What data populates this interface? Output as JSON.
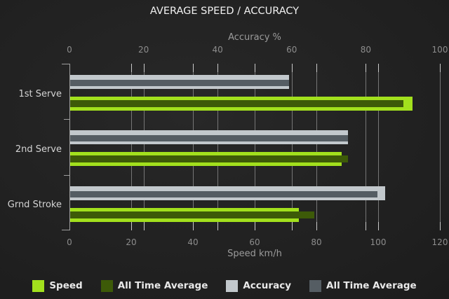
{
  "chart_data": {
    "type": "bar",
    "orientation": "horizontal",
    "title": "AVERAGE SPEED / ACCURACY",
    "grid": true,
    "legend_position": "bottom",
    "categories": [
      "1st Serve",
      "2nd Serve",
      "Grnd Stroke"
    ],
    "series": [
      {
        "key": "speed",
        "name": "Speed",
        "axis": "bottom",
        "color": "#a2e01d",
        "values": [
          111,
          88,
          74
        ]
      },
      {
        "key": "speed-ata",
        "name": "All Time Average",
        "axis": "bottom",
        "color": "#3d5a08",
        "values": [
          108,
          90,
          79
        ]
      },
      {
        "key": "accuracy",
        "name": "Accuracy",
        "axis": "top",
        "color": "#c2c8cc",
        "values": [
          59,
          75,
          85
        ]
      },
      {
        "key": "accuracy-ata",
        "name": "All Time Average",
        "axis": "top",
        "color": "#555d63",
        "values": [
          59,
          75,
          83
        ]
      }
    ],
    "axes": {
      "top": {
        "label": "Accuracy %",
        "min": 0,
        "max": 100,
        "ticks": [
          0,
          20,
          40,
          60,
          80,
          100
        ]
      },
      "bottom": {
        "label": "Speed km/h",
        "min": 0,
        "max": 120,
        "ticks": [
          0,
          20,
          40,
          60,
          80,
          100,
          120
        ]
      }
    },
    "legend": [
      {
        "key": "speed",
        "label": "Speed",
        "color": "#a2e01d"
      },
      {
        "key": "speed-ata",
        "label": "All Time Average",
        "color": "#3d5a08"
      },
      {
        "key": "accuracy",
        "label": "Accuracy",
        "color": "#c2c8cc"
      },
      {
        "key": "accuracy-ata",
        "label": "All Time Average",
        "color": "#555d63"
      }
    ]
  }
}
